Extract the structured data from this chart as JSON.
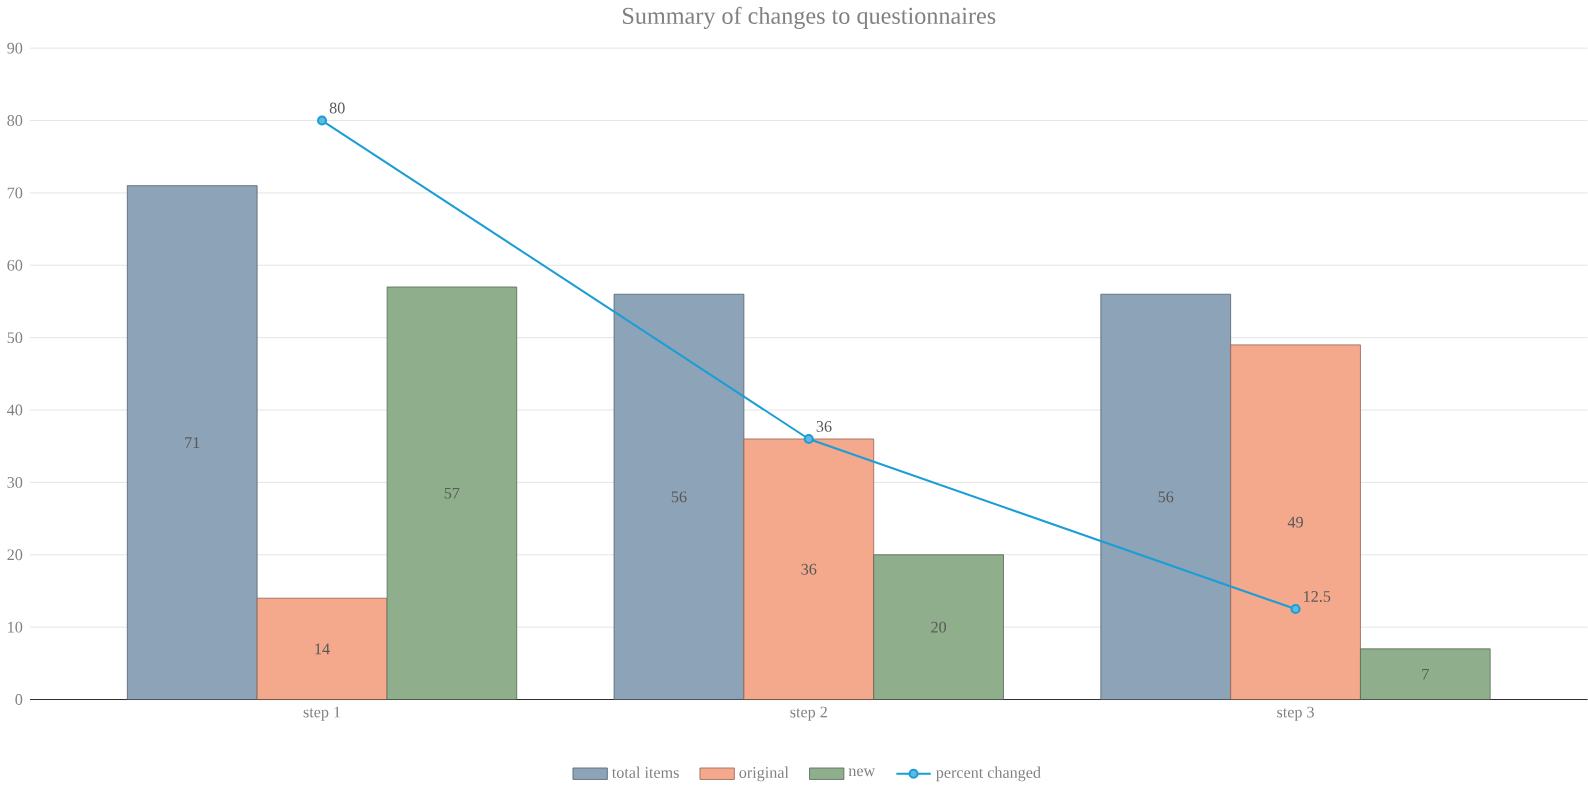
{
  "chart_data": {
    "type": "bar",
    "title": "Summary of changes to questionnaires",
    "categories": [
      "step 1",
      "step 2",
      "step 3"
    ],
    "series": [
      {
        "name": "total items",
        "color": "#8da3b8",
        "values": [
          71,
          56,
          56
        ]
      },
      {
        "name": "original",
        "color": "#f4a88c",
        "values": [
          14,
          36,
          49
        ]
      },
      {
        "name": "new",
        "color": "#8fae8c",
        "values": [
          57,
          20,
          7
        ]
      },
      {
        "name": "percent changed",
        "type": "line",
        "color": "#1b9dd6",
        "values": [
          80,
          36,
          12.5
        ],
        "value_labels": [
          "80",
          "36",
          "12.5"
        ]
      }
    ],
    "ylim": [
      0,
      90
    ],
    "yticks": [
      0,
      10,
      20,
      30,
      40,
      50,
      60,
      70,
      80,
      90
    ],
    "grid": "y",
    "legend": "bottom",
    "data_labels": true,
    "marker": "circle"
  }
}
